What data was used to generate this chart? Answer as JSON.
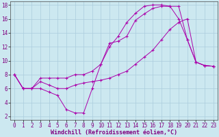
{
  "xlabel": "Windchill (Refroidissement éolien,°C)",
  "xlim": [
    -0.5,
    23.5
  ],
  "ylim": [
    1.5,
    18.5
  ],
  "xticks": [
    0,
    1,
    2,
    3,
    4,
    5,
    6,
    7,
    8,
    9,
    10,
    11,
    12,
    13,
    14,
    15,
    16,
    17,
    18,
    19,
    20,
    21,
    22,
    23
  ],
  "yticks": [
    2,
    4,
    6,
    8,
    10,
    12,
    14,
    16,
    18
  ],
  "background_color": "#cce8f0",
  "grid_color": "#aaccdd",
  "line_color": "#aa00aa",
  "line1_y": [
    8.0,
    6.0,
    6.0,
    6.0,
    5.5,
    5.0,
    3.0,
    2.5,
    2.5,
    6.0,
    9.5,
    12.5,
    12.8,
    13.5,
    15.8,
    16.7,
    17.5,
    17.8,
    17.8,
    16.0,
    13.0,
    9.8,
    9.3,
    9.2
  ],
  "line2_y": [
    8.0,
    6.0,
    6.0,
    7.0,
    6.5,
    6.0,
    6.0,
    6.5,
    6.8,
    7.0,
    7.2,
    7.5,
    8.0,
    8.5,
    9.5,
    10.5,
    11.5,
    13.0,
    14.5,
    15.5,
    16.0,
    9.8,
    9.3,
    9.2
  ],
  "line3_y": [
    8.0,
    6.0,
    6.0,
    7.5,
    7.5,
    7.5,
    7.5,
    8.0,
    8.0,
    8.5,
    9.5,
    12.0,
    13.5,
    15.5,
    16.8,
    17.8,
    18.0,
    18.0,
    17.8,
    17.8,
    13.0,
    9.8,
    9.3,
    9.2
  ],
  "tick_fontsize": 5.5,
  "xlabel_fontsize": 6.0
}
